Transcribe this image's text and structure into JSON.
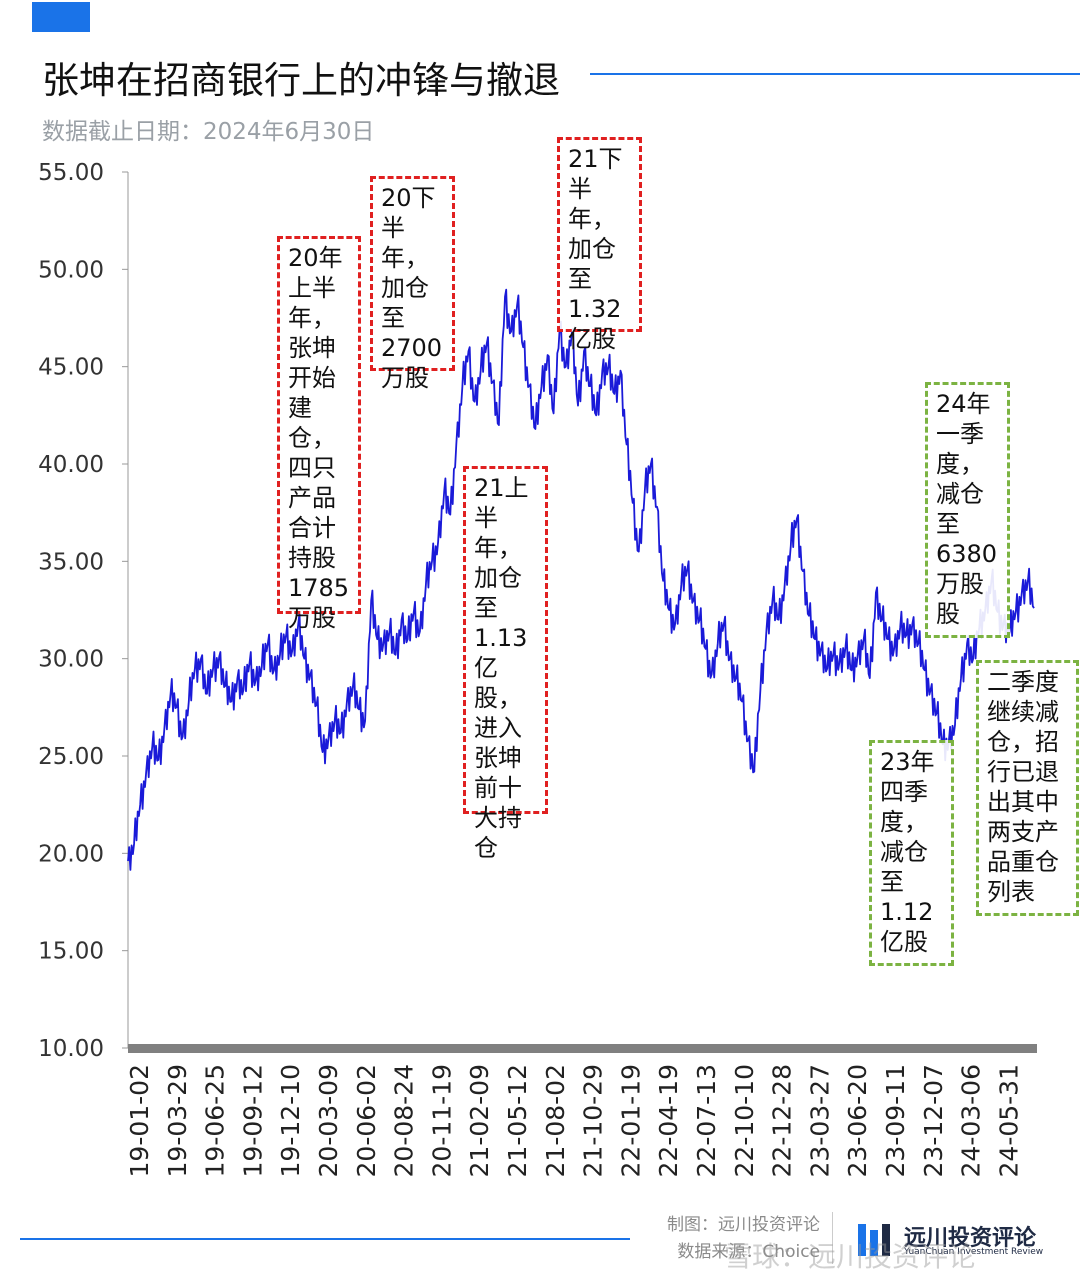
{
  "header": {
    "title": "张坤在招商银行上的冲锋与撤退",
    "subtitle": "数据截止日期：2024年6月30日"
  },
  "colors": {
    "accent": "#1a73e8",
    "line": "#1a1ad8",
    "red_box": "#e02020",
    "green_box": "#7cb342",
    "axis_bar": "#808080"
  },
  "annotations": [
    {
      "text": "20年\n上半\n年，\n张坤\n开始\n建仓，\n四只\n产品\n合计\n持股\n1785\n万股",
      "color": "red"
    },
    {
      "text": "20下\n半年，\n加仓\n至\n2700\n万股",
      "color": "red"
    },
    {
      "text": "21上\n半年，\n加仓\n至\n1.13\n亿股，\n进入\n张坤\n前十\n大持\n仓",
      "color": "red"
    },
    {
      "text": "21下\n半年，\n加仓\n至\n1.32\n亿股",
      "color": "red"
    },
    {
      "text": "23年\n四季\n度，\n减仓\n至\n1.12\n亿股",
      "color": "green"
    },
    {
      "text": "24年\n一季\n度，\n减仓\n至\n6380\n万股\n股",
      "color": "green"
    },
    {
      "text": "二季度\n继续减\n仓，招\n行已退\n出其中\n两支产\n品重仓\n列表",
      "color": "green"
    }
  ],
  "footer": {
    "made_by": "制图：远川投资评论",
    "source": "数据来源：Choice",
    "logo_name": "远川投资评论",
    "logo_sub": "YuanChuan Investment Review",
    "watermark": "雪球：远川投资评论"
  },
  "chart_data": {
    "type": "line",
    "title": "张坤在招商银行上的冲锋与撤退",
    "ylim": [
      10,
      55
    ],
    "y_ticks": [
      "55.00",
      "50.00",
      "45.00",
      "40.00",
      "35.00",
      "30.00",
      "25.00",
      "20.00",
      "15.00",
      "10.00"
    ],
    "x_tick_labels": [
      "19-01-02",
      "19-03-29",
      "19-06-25",
      "19-09-12",
      "19-12-10",
      "20-03-09",
      "20-06-02",
      "20-08-24",
      "20-11-19",
      "21-02-09",
      "21-05-12",
      "21-08-02",
      "21-10-29",
      "22-01-19",
      "22-04-19",
      "22-07-13",
      "22-10-10",
      "22-12-28",
      "23-03-27",
      "23-06-20",
      "23-09-11",
      "23-12-07",
      "24-03-06",
      "24-05-31"
    ],
    "grid": false,
    "series": [
      {
        "values": [
          19.6,
          20.5,
          22.5,
          24.2,
          25.5,
          24.8,
          26.5,
          28.2,
          27.5,
          26.0,
          27.8,
          29.5,
          30.0,
          28.2,
          29.5,
          30.1,
          28.6,
          27.8,
          29.0,
          28.4,
          29.8,
          28.9,
          29.6,
          30.8,
          29.4,
          30.2,
          31.2,
          30.4,
          31.8,
          30.0,
          29.2,
          27.6,
          25.2,
          26.0,
          26.8,
          26.2,
          27.8,
          28.6,
          27.4,
          26.8,
          33.0,
          31.0,
          30.8,
          31.4,
          30.2,
          32.0,
          31.0,
          32.4,
          31.4,
          33.8,
          35.0,
          36.0,
          38.6,
          37.4,
          41.0,
          44.0,
          45.8,
          43.2,
          44.8,
          46.2,
          44.2,
          42.0,
          48.6,
          46.8,
          48.2,
          46.0,
          44.0,
          41.8,
          44.0,
          45.6,
          42.6,
          47.0,
          45.0,
          46.8,
          43.0,
          45.8,
          44.0,
          42.5,
          44.8,
          45.0,
          43.6,
          44.8,
          41.0,
          38.0,
          35.5,
          38.6,
          40.0,
          37.8,
          34.0,
          32.5,
          31.8,
          33.8,
          34.6,
          33.0,
          32.0,
          30.5,
          29.2,
          30.8,
          31.8,
          30.0,
          29.0,
          27.8,
          25.8,
          24.2,
          28.4,
          31.5,
          33.0,
          32.0,
          33.8,
          35.8,
          37.2,
          34.5,
          32.2,
          31.0,
          30.5,
          29.5,
          30.2,
          29.8,
          30.6,
          29.4,
          30.2,
          31.0,
          29.0,
          33.4,
          32.0,
          31.0,
          30.5,
          31.6,
          31.2,
          31.8,
          30.8,
          29.4,
          28.4,
          27.2,
          25.6,
          25.8,
          26.6,
          29.0,
          30.8,
          30.0,
          31.6,
          32.6,
          34.0,
          32.4,
          31.8,
          31.4,
          32.4,
          33.4,
          34.0,
          32.6
        ]
      }
    ]
  }
}
